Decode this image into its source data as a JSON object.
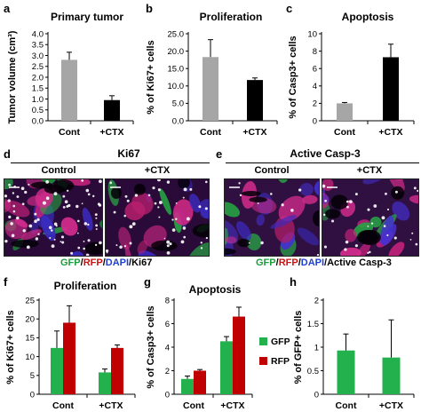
{
  "panels": {
    "a": "a",
    "b": "b",
    "c": "c",
    "d": "d",
    "e": "e",
    "f": "f",
    "g": "g",
    "h": "h"
  },
  "microscopy": {
    "d_title": "Ki67",
    "d_left": "Control",
    "d_right": "+CTX",
    "e_title": "Active Casp-3",
    "e_left": "Control",
    "e_right": "+CTX",
    "d_legend": {
      "gfp": "GFP",
      "s1": "/",
      "rfp": "RFP",
      "s2": "/",
      "dapi": "DAPI",
      "s3": "/",
      "marker": "Ki67"
    },
    "e_legend": {
      "gfp": "GFP",
      "s1": "/",
      "rfp": "RFP",
      "s2": "/",
      "dapi": "DAPI",
      "s3": "/",
      "marker": "Active Casp-3"
    }
  },
  "colors": {
    "cont_bar": "#a6a6a6",
    "ctx_bar": "#000000",
    "gfp": "#22b14c",
    "rfp": "#c00000",
    "gfp_text": "#1a9e3b",
    "rfp_text": "#d01010",
    "dapi_text": "#1f3fd0"
  },
  "chart_data": [
    {
      "id": "a",
      "type": "bar",
      "title": "Primary tumor",
      "ylabel": "Tumor volume (cm³)",
      "categories": [
        "Cont",
        "+CTX"
      ],
      "values": [
        2.8,
        0.95
      ],
      "errors": [
        0.35,
        0.2
      ],
      "ylim": [
        0,
        4
      ],
      "yticks": [
        "0.0",
        "0.5",
        "1.0",
        "1.5",
        "2.0",
        "2.5",
        "3.0",
        "3.5",
        "4.0"
      ],
      "bar_colors": [
        "#a6a6a6",
        "#000000"
      ]
    },
    {
      "id": "b",
      "type": "bar",
      "title": "Proliferation",
      "ylabel": "% of Ki67+ cells",
      "categories": [
        "Cont",
        "+CTX"
      ],
      "values": [
        18.3,
        11.7
      ],
      "errors": [
        5.0,
        0.6
      ],
      "ylim": [
        0,
        25
      ],
      "yticks": [
        "0.0",
        "5.0",
        "10.0",
        "15.0",
        "20.0",
        "25.0"
      ],
      "bar_colors": [
        "#a6a6a6",
        "#000000"
      ]
    },
    {
      "id": "c",
      "type": "bar",
      "title": "Apoptosis",
      "ylabel": "% of Casp3+ cells",
      "categories": [
        "Cont",
        "+CTX"
      ],
      "values": [
        2.0,
        7.3
      ],
      "errors": [
        0.1,
        1.5
      ],
      "ylim": [
        0,
        10
      ],
      "yticks": [
        "0",
        "2",
        "4",
        "6",
        "8",
        "10"
      ],
      "bar_colors": [
        "#a6a6a6",
        "#000000"
      ]
    },
    {
      "id": "f",
      "type": "bar",
      "title": "Proliferation",
      "ylabel": "% of Ki67+ cells",
      "categories": [
        "Cont",
        "+CTX"
      ],
      "series": [
        {
          "name": "GFP",
          "values": [
            12.3,
            5.8
          ],
          "errors": [
            4.5,
            0.9
          ]
        },
        {
          "name": "RFP",
          "values": [
            19.0,
            12.3
          ],
          "errors": [
            4.5,
            0.8
          ]
        }
      ],
      "ylim": [
        0,
        25
      ],
      "yticks": [
        "0",
        "5",
        "10",
        "15",
        "20",
        "25"
      ]
    },
    {
      "id": "g",
      "type": "bar",
      "title": "Apoptosis",
      "ylabel": "% of Casp3+ cells",
      "categories": [
        "Cont",
        "+CTX"
      ],
      "series": [
        {
          "name": "GFP",
          "values": [
            1.3,
            4.5
          ],
          "errors": [
            0.25,
            0.4
          ]
        },
        {
          "name": "RFP",
          "values": [
            2.0,
            6.6
          ],
          "errors": [
            0.1,
            0.8
          ]
        }
      ],
      "ylim": [
        0,
        8
      ],
      "yticks": [
        "0",
        "2",
        "4",
        "6",
        "8"
      ],
      "legend": [
        "GFP",
        "RFP"
      ]
    },
    {
      "id": "h",
      "type": "bar",
      "title": "",
      "ylabel": "% of GFP+ cells",
      "categories": [
        "Cont",
        "+CTX"
      ],
      "values": [
        0.93,
        0.78
      ],
      "errors": [
        0.35,
        0.8
      ],
      "ylim": [
        0,
        2
      ],
      "yticks": [
        "0",
        "0.5",
        "1",
        "1.5",
        "2"
      ],
      "bar_colors": [
        "#22b14c",
        "#22b14c"
      ]
    }
  ]
}
